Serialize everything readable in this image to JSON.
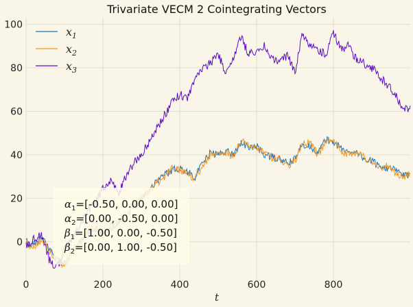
{
  "chart_data": {
    "type": "line",
    "title": "Trivariate VECM 2 Cointegrating Vectors",
    "xlabel": "t",
    "ylabel": "",
    "xlim": [
      0,
      1000
    ],
    "ylim": [
      -18,
      103
    ],
    "xticks": [
      0,
      200,
      400,
      600,
      800
    ],
    "yticks": [
      0,
      20,
      40,
      60,
      80,
      100
    ],
    "grid": true,
    "legend_position": "top-left",
    "series": [
      {
        "name": "x",
        "subscript": "1",
        "color": "#1f6fb4",
        "anchors": [
          [
            0,
            0
          ],
          [
            20,
            -2
          ],
          [
            40,
            2
          ],
          [
            60,
            -3
          ],
          [
            80,
            -8
          ],
          [
            100,
            -10
          ],
          [
            120,
            -5
          ],
          [
            140,
            0
          ],
          [
            160,
            4
          ],
          [
            180,
            6
          ],
          [
            200,
            3
          ],
          [
            220,
            6
          ],
          [
            240,
            9
          ],
          [
            260,
            12
          ],
          [
            280,
            16
          ],
          [
            300,
            20
          ],
          [
            320,
            24
          ],
          [
            340,
            28
          ],
          [
            360,
            31
          ],
          [
            380,
            33
          ],
          [
            400,
            34
          ],
          [
            420,
            32
          ],
          [
            440,
            30
          ],
          [
            460,
            36
          ],
          [
            480,
            41
          ],
          [
            500,
            40
          ],
          [
            520,
            42
          ],
          [
            540,
            40
          ],
          [
            560,
            46
          ],
          [
            580,
            43
          ],
          [
            600,
            44
          ],
          [
            620,
            40
          ],
          [
            640,
            39
          ],
          [
            660,
            38
          ],
          [
            680,
            36
          ],
          [
            700,
            38
          ],
          [
            720,
            45
          ],
          [
            740,
            44
          ],
          [
            760,
            41
          ],
          [
            780,
            47
          ],
          [
            800,
            46
          ],
          [
            820,
            43
          ],
          [
            840,
            41
          ],
          [
            860,
            42
          ],
          [
            880,
            38
          ],
          [
            900,
            37
          ],
          [
            920,
            35
          ],
          [
            940,
            34
          ],
          [
            960,
            33
          ],
          [
            980,
            31
          ],
          [
            1000,
            30
          ]
        ]
      },
      {
        "name": "x",
        "subscript": "2",
        "color": "#f3941c",
        "anchors": [
          [
            0,
            -1
          ],
          [
            20,
            -3
          ],
          [
            40,
            1
          ],
          [
            60,
            -4
          ],
          [
            80,
            -9
          ],
          [
            100,
            -11
          ],
          [
            120,
            -6
          ],
          [
            140,
            -1
          ],
          [
            160,
            5
          ],
          [
            180,
            7
          ],
          [
            200,
            2
          ],
          [
            220,
            7
          ],
          [
            240,
            10
          ],
          [
            260,
            13
          ],
          [
            280,
            17
          ],
          [
            300,
            21
          ],
          [
            320,
            23
          ],
          [
            340,
            27
          ],
          [
            360,
            30
          ],
          [
            380,
            34
          ],
          [
            400,
            33
          ],
          [
            420,
            31
          ],
          [
            440,
            29
          ],
          [
            460,
            35
          ],
          [
            480,
            40
          ],
          [
            500,
            41
          ],
          [
            520,
            41
          ],
          [
            540,
            39
          ],
          [
            560,
            47
          ],
          [
            580,
            44
          ],
          [
            600,
            43
          ],
          [
            620,
            41
          ],
          [
            640,
            38
          ],
          [
            660,
            39
          ],
          [
            680,
            35
          ],
          [
            700,
            37
          ],
          [
            720,
            46
          ],
          [
            740,
            45
          ],
          [
            760,
            40
          ],
          [
            780,
            46
          ],
          [
            800,
            47
          ],
          [
            820,
            42
          ],
          [
            840,
            40
          ],
          [
            860,
            41
          ],
          [
            880,
            39
          ],
          [
            900,
            36
          ],
          [
            920,
            34
          ],
          [
            940,
            35
          ],
          [
            960,
            32
          ],
          [
            980,
            30
          ],
          [
            1000,
            31
          ]
        ]
      },
      {
        "name": "x",
        "subscript": "3",
        "color": "#5b0cbf",
        "anchors": [
          [
            0,
            -2
          ],
          [
            20,
            1
          ],
          [
            40,
            3
          ],
          [
            60,
            -8
          ],
          [
            80,
            -12
          ],
          [
            100,
            -4
          ],
          [
            120,
            2
          ],
          [
            140,
            8
          ],
          [
            160,
            14
          ],
          [
            180,
            18
          ],
          [
            200,
            24
          ],
          [
            220,
            28
          ],
          [
            240,
            22
          ],
          [
            260,
            30
          ],
          [
            280,
            36
          ],
          [
            300,
            40
          ],
          [
            320,
            46
          ],
          [
            340,
            52
          ],
          [
            360,
            58
          ],
          [
            380,
            64
          ],
          [
            400,
            68
          ],
          [
            420,
            66
          ],
          [
            440,
            74
          ],
          [
            460,
            80
          ],
          [
            480,
            82
          ],
          [
            500,
            86
          ],
          [
            520,
            78
          ],
          [
            540,
            85
          ],
          [
            560,
            94
          ],
          [
            580,
            86
          ],
          [
            600,
            88
          ],
          [
            620,
            90
          ],
          [
            640,
            84
          ],
          [
            660,
            82
          ],
          [
            680,
            86
          ],
          [
            700,
            78
          ],
          [
            720,
            96
          ],
          [
            740,
            90
          ],
          [
            760,
            88
          ],
          [
            780,
            86
          ],
          [
            800,
            96
          ],
          [
            820,
            89
          ],
          [
            840,
            90
          ],
          [
            860,
            84
          ],
          [
            880,
            82
          ],
          [
            900,
            80
          ],
          [
            920,
            76
          ],
          [
            940,
            72
          ],
          [
            960,
            68
          ],
          [
            980,
            62
          ],
          [
            1000,
            61
          ]
        ]
      }
    ],
    "annotation_lines": [
      {
        "sym": "α",
        "sub": "1",
        "val": "=[-0.50, 0.00, 0.00]"
      },
      {
        "sym": "α",
        "sub": "2",
        "val": "=[0.00, -0.50, 0.00]"
      },
      {
        "sym": "β",
        "sub": "1",
        "val": "=[1.00, 0.00, -0.50]"
      },
      {
        "sym": "β",
        "sub": "2",
        "val": "=[0.00, 1.00, -0.50]"
      }
    ]
  }
}
